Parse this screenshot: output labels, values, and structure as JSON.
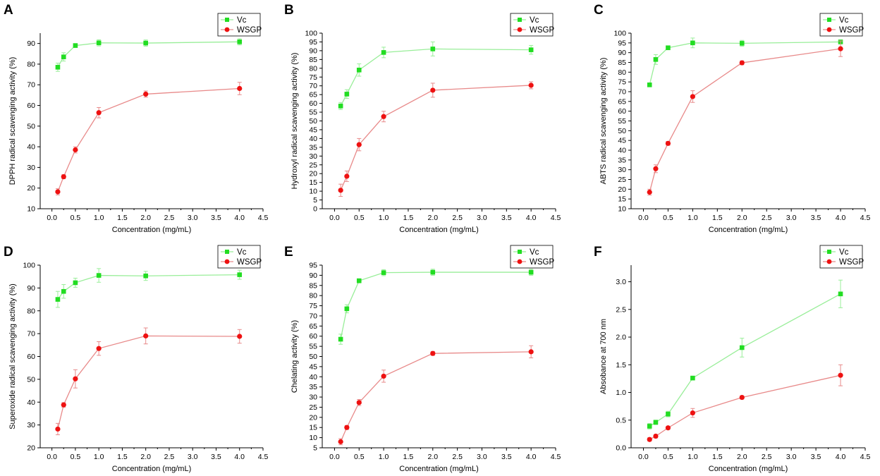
{
  "figure": {
    "colors": {
      "vc": "#22dd22",
      "wsgp": "#ee1111",
      "vc_line": "#99ee99",
      "wsgp_line": "#e88a8a"
    }
  },
  "chart_data": [
    {
      "panel": "A",
      "type": "line",
      "xlabel": "Concentration (mg/mL)",
      "ylabel": "DPPH radical scavenging activity (%)",
      "xlim": [
        -0.25,
        4.5
      ],
      "ylim": [
        10,
        95
      ],
      "xticks": [
        0.0,
        0.5,
        1.0,
        1.5,
        2.0,
        2.5,
        3.0,
        3.5,
        4.0,
        4.5
      ],
      "xtick_labels": [
        "0.0",
        "0.5",
        "1.0",
        "1.5",
        "2.0",
        "2.5",
        "3.0",
        "3.5",
        "4.0",
        "4.5"
      ],
      "yticks": [
        10,
        20,
        30,
        40,
        50,
        60,
        70,
        80,
        90
      ],
      "ytick_labels": [
        "10",
        "20",
        "30",
        "40",
        "50",
        "60",
        "70",
        "80",
        "90"
      ],
      "legend_position": "top-right",
      "series": [
        {
          "name": "Vc",
          "marker": "square",
          "x": [
            0.125,
            0.25,
            0.5,
            1,
            2,
            4
          ],
          "values": [
            78.5,
            83.5,
            89,
            90.3,
            90.2,
            90.8
          ],
          "errors": [
            2,
            2,
            0.8,
            1.5,
            1.5,
            1.5
          ]
        },
        {
          "name": "WSGP",
          "marker": "circle",
          "x": [
            0.125,
            0.25,
            0.5,
            1,
            2,
            4
          ],
          "values": [
            18.2,
            25.5,
            38.5,
            56.5,
            65.5,
            68.2
          ],
          "errors": [
            1.5,
            1,
            1.5,
            2.5,
            1.5,
            3
          ]
        }
      ]
    },
    {
      "panel": "B",
      "type": "line",
      "xlabel": "Concentration (mg/mL)",
      "ylabel": "Hydroxyl radical scavenging activity (%)",
      "xlim": [
        -0.25,
        4.5
      ],
      "ylim": [
        0,
        100
      ],
      "xticks": [
        0.0,
        0.5,
        1.0,
        1.5,
        2.0,
        2.5,
        3.0,
        3.5,
        4.0,
        4.5
      ],
      "xtick_labels": [
        "0.0",
        "0.5",
        "1.0",
        "1.5",
        "2.0",
        "2.5",
        "3.0",
        "3.5",
        "4.0",
        "4.5"
      ],
      "yticks": [
        0,
        5,
        10,
        15,
        20,
        25,
        30,
        35,
        40,
        45,
        50,
        55,
        60,
        65,
        70,
        75,
        80,
        85,
        90,
        95,
        100
      ],
      "ytick_labels": [
        "0",
        "5",
        "10",
        "15",
        "20",
        "25",
        "30",
        "35",
        "40",
        "45",
        "50",
        "55",
        "60",
        "65",
        "70",
        "75",
        "80",
        "85",
        "90",
        "95",
        "100"
      ],
      "legend_position": "top-right",
      "series": [
        {
          "name": "Vc",
          "marker": "square",
          "x": [
            0.125,
            0.25,
            0.5,
            1,
            2,
            4
          ],
          "values": [
            58.5,
            65.3,
            79,
            89,
            91,
            90.5
          ],
          "errors": [
            2,
            2.5,
            3.5,
            3,
            4,
            2.5
          ]
        },
        {
          "name": "WSGP",
          "marker": "circle",
          "x": [
            0.125,
            0.25,
            0.5,
            1,
            2,
            4
          ],
          "values": [
            10.5,
            18.5,
            36.5,
            52.5,
            67.5,
            70.3
          ],
          "errors": [
            3.5,
            3,
            3.5,
            3,
            4,
            2
          ]
        }
      ]
    },
    {
      "panel": "C",
      "type": "line",
      "xlabel": "Concentration (mg/mL)",
      "ylabel": "ABTS radical scavenging activity (%)",
      "xlim": [
        -0.25,
        4.5
      ],
      "ylim": [
        10,
        100
      ],
      "xticks": [
        0.0,
        0.5,
        1.0,
        1.5,
        2.0,
        2.5,
        3.0,
        3.5,
        4.0,
        4.5
      ],
      "xtick_labels": [
        "0.0",
        "0.5",
        "1.0",
        "1.5",
        "2.0",
        "2.5",
        "3.0",
        "3.5",
        "4.0",
        "4.5"
      ],
      "yticks": [
        10,
        15,
        20,
        25,
        30,
        35,
        40,
        45,
        50,
        55,
        60,
        65,
        70,
        75,
        80,
        85,
        90,
        95,
        100
      ],
      "ytick_labels": [
        "10",
        "15",
        "20",
        "25",
        "30",
        "35",
        "40",
        "45",
        "50",
        "55",
        "60",
        "65",
        "70",
        "75",
        "80",
        "85",
        "90",
        "95",
        "100"
      ],
      "legend_position": "top-right",
      "series": [
        {
          "name": "Vc",
          "marker": "square",
          "x": [
            0.125,
            0.25,
            0.5,
            1,
            2,
            4
          ],
          "values": [
            73.5,
            86.5,
            92.5,
            95,
            94.8,
            95.5
          ],
          "errors": [
            0.8,
            2.5,
            1,
            2.5,
            1.5,
            0.8
          ]
        },
        {
          "name": "WSGP",
          "marker": "circle",
          "x": [
            0.125,
            0.25,
            0.5,
            1,
            2,
            4
          ],
          "values": [
            18.5,
            30.5,
            43.5,
            67.5,
            84.8,
            92
          ],
          "errors": [
            1.5,
            2,
            1,
            3,
            1,
            4
          ]
        }
      ]
    },
    {
      "panel": "D",
      "type": "line",
      "xlabel": "Concentration (mg/mL)",
      "ylabel": "Superoxide radical scavenging activity (%)",
      "xlim": [
        -0.25,
        4.5
      ],
      "ylim": [
        20,
        100
      ],
      "xticks": [
        0.0,
        0.5,
        1.0,
        1.5,
        2.0,
        2.5,
        3.0,
        3.5,
        4.0,
        4.5
      ],
      "xtick_labels": [
        "0.0",
        "0.5",
        "1.0",
        "1.5",
        "2.0",
        "2.5",
        "3.0",
        "3.5",
        "4.0",
        "4.5"
      ],
      "yticks": [
        20,
        30,
        40,
        50,
        60,
        70,
        80,
        90,
        100
      ],
      "ytick_labels": [
        "20",
        "30",
        "40",
        "50",
        "60",
        "70",
        "80",
        "90",
        "100"
      ],
      "legend_position": "top-right",
      "series": [
        {
          "name": "Vc",
          "marker": "square",
          "x": [
            0.125,
            0.25,
            0.5,
            1,
            2,
            4
          ],
          "values": [
            85,
            88.5,
            92.3,
            95.5,
            95.3,
            95.8
          ],
          "errors": [
            3.5,
            3,
            2,
            3,
            2,
            2
          ]
        },
        {
          "name": "WSGP",
          "marker": "circle",
          "x": [
            0.125,
            0.25,
            0.5,
            1,
            2,
            4
          ],
          "values": [
            28.2,
            38.8,
            50.2,
            63.5,
            69,
            68.8
          ],
          "errors": [
            2.5,
            1,
            4,
            3,
            3.5,
            3
          ]
        }
      ]
    },
    {
      "panel": "E",
      "type": "line",
      "xlabel": "Concentration (mg/mL)",
      "ylabel": "Chelating  activity (%)",
      "xlim": [
        -0.25,
        4.5
      ],
      "ylim": [
        5,
        95
      ],
      "xticks": [
        0.0,
        0.5,
        1.0,
        1.5,
        2.0,
        2.5,
        3.0,
        3.5,
        4.0,
        4.5
      ],
      "xtick_labels": [
        "0.0",
        "0.5",
        "1.0",
        "1.5",
        "2.0",
        "2.5",
        "3.0",
        "3.5",
        "4.0",
        "4.5"
      ],
      "yticks": [
        5,
        10,
        15,
        20,
        25,
        30,
        35,
        40,
        45,
        50,
        55,
        60,
        65,
        70,
        75,
        80,
        85,
        90,
        95
      ],
      "ytick_labels": [
        "5",
        "10",
        "15",
        "20",
        "25",
        "30",
        "35",
        "40",
        "45",
        "50",
        "55",
        "60",
        "65",
        "70",
        "75",
        "80",
        "85",
        "90",
        "95"
      ],
      "legend_position": "top-right",
      "series": [
        {
          "name": "Vc",
          "marker": "square",
          "x": [
            0.125,
            0.25,
            0.5,
            1,
            2,
            4
          ],
          "values": [
            58.5,
            73.5,
            87.3,
            91.3,
            91.5,
            91.5
          ],
          "errors": [
            2.5,
            2,
            1,
            1.5,
            1.5,
            1.5
          ]
        },
        {
          "name": "WSGP",
          "marker": "circle",
          "x": [
            0.125,
            0.25,
            0.5,
            1,
            2,
            4
          ],
          "values": [
            8,
            15,
            27.3,
            40.3,
            51.5,
            52.3
          ],
          "errors": [
            1.5,
            1,
            1.5,
            3,
            1,
            3
          ]
        }
      ]
    },
    {
      "panel": "F",
      "type": "line",
      "xlabel": "Concentration (mg/mL)",
      "ylabel": "Absobance at 700 nm",
      "xlim": [
        -0.25,
        4.5
      ],
      "ylim": [
        0,
        3.3
      ],
      "xticks": [
        0.0,
        0.5,
        1.0,
        1.5,
        2.0,
        2.5,
        3.0,
        3.5,
        4.0,
        4.5
      ],
      "xtick_labels": [
        "0.0",
        "0.5",
        "1.0",
        "1.5",
        "2.0",
        "2.5",
        "3.0",
        "3.5",
        "4.0",
        "4.5"
      ],
      "yticks": [
        0,
        0.5,
        1.0,
        1.5,
        2.0,
        2.5,
        3.0
      ],
      "ytick_labels": [
        "0.0",
        "0.5",
        "1.0",
        "1.5",
        "2.0",
        "2.5",
        "3.0"
      ],
      "legend_position": "top-right",
      "series": [
        {
          "name": "Vc",
          "marker": "square",
          "x": [
            0.125,
            0.25,
            0.5,
            1,
            2,
            4
          ],
          "values": [
            0.39,
            0.46,
            0.61,
            1.26,
            1.81,
            2.78
          ],
          "errors": [
            0.05,
            0.04,
            0.05,
            0.03,
            0.17,
            0.25
          ]
        },
        {
          "name": "WSGP",
          "marker": "circle",
          "x": [
            0.125,
            0.25,
            0.5,
            1,
            2,
            4
          ],
          "values": [
            0.15,
            0.21,
            0.36,
            0.63,
            0.91,
            1.31
          ],
          "errors": [
            0.03,
            0.03,
            0.03,
            0.08,
            0.03,
            0.19
          ]
        }
      ]
    }
  ]
}
